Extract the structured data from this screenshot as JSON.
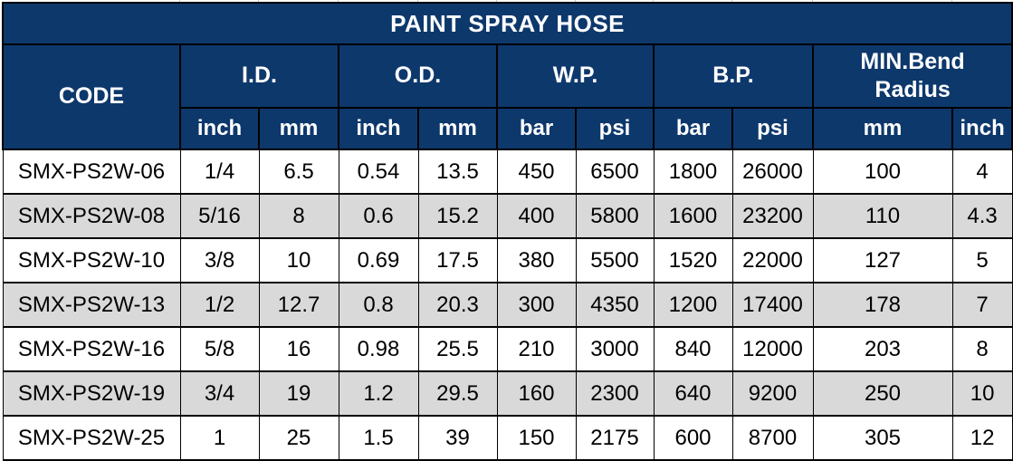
{
  "title": "PAINT SPRAY HOSE",
  "table": {
    "code_header": "CODE",
    "groups": [
      {
        "label": "I.D.",
        "sub": [
          "inch",
          "mm"
        ]
      },
      {
        "label": "O.D.",
        "sub": [
          "inch",
          "mm"
        ]
      },
      {
        "label": "W.P.",
        "sub": [
          "bar",
          "psi"
        ]
      },
      {
        "label": "B.P.",
        "sub": [
          "bar",
          "psi"
        ]
      },
      {
        "label": "MIN.Bend\nRadius",
        "sub": [
          "mm",
          "inch"
        ]
      }
    ],
    "rows": [
      {
        "code": "SMX-PS2W-06",
        "values": [
          "1/4",
          "6.5",
          "0.54",
          "13.5",
          "450",
          "6500",
          "1800",
          "26000",
          "100",
          "4"
        ]
      },
      {
        "code": "SMX-PS2W-08",
        "values": [
          "5/16",
          "8",
          "0.6",
          "15.2",
          "400",
          "5800",
          "1600",
          "23200",
          "110",
          "4.3"
        ]
      },
      {
        "code": "SMX-PS2W-10",
        "values": [
          "3/8",
          "10",
          "0.69",
          "17.5",
          "380",
          "5500",
          "1520",
          "22000",
          "127",
          "5"
        ]
      },
      {
        "code": "SMX-PS2W-13",
        "values": [
          "1/2",
          "12.7",
          "0.8",
          "20.3",
          "300",
          "4350",
          "1200",
          "17400",
          "178",
          "7"
        ]
      },
      {
        "code": "SMX-PS2W-16",
        "values": [
          "5/8",
          "16",
          "0.98",
          "25.5",
          "210",
          "3000",
          "840",
          "12000",
          "203",
          "8"
        ]
      },
      {
        "code": "SMX-PS2W-19",
        "values": [
          "3/4",
          "19",
          "1.2",
          "29.5",
          "160",
          "2300",
          "640",
          "9200",
          "250",
          "10"
        ]
      },
      {
        "code": "SMX-PS2W-25",
        "values": [
          "1",
          "25",
          "1.5",
          "39",
          "150",
          "2175",
          "600",
          "8700",
          "305",
          "12"
        ]
      }
    ]
  },
  "colors": {
    "header_background": "#0d386c",
    "header_text": "#ffffff",
    "row_alternate": "#d9d9d9",
    "row_default": "#ffffff",
    "border": "#000000",
    "data_text": "#000000"
  }
}
